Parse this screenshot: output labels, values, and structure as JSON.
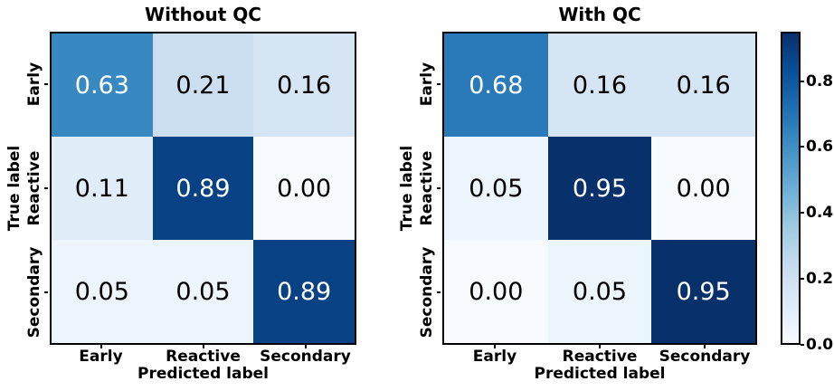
{
  "figure": {
    "background": "#ffffff"
  },
  "chart_data": [
    {
      "type": "heatmap",
      "title": "Without QC",
      "xlabel": "Predicted label",
      "ylabel": "True label",
      "x_tick_labels": [
        "Early",
        "Reactive",
        "Secondary"
      ],
      "y_tick_labels": [
        "Early",
        "Reactive",
        "Secondary"
      ],
      "rows": [
        [
          0.63,
          0.21,
          0.16
        ],
        [
          0.11,
          0.89,
          0.0
        ],
        [
          0.05,
          0.05,
          0.89
        ]
      ]
    },
    {
      "type": "heatmap",
      "title": "With QC",
      "xlabel": "Predicted label",
      "ylabel": "True label",
      "x_tick_labels": [
        "Early",
        "Reactive",
        "Secondary"
      ],
      "y_tick_labels": [
        "Early",
        "Reactive",
        "Secondary"
      ],
      "rows": [
        [
          0.68,
          0.16,
          0.16
        ],
        [
          0.05,
          0.95,
          0.0
        ],
        [
          0.0,
          0.05,
          0.95
        ]
      ]
    }
  ],
  "colorbar": {
    "vmin": 0.0,
    "vmax": 0.95,
    "colormap_name": "Blues",
    "ticks": [
      {
        "value": 0.0,
        "label": "0.0"
      },
      {
        "value": 0.2,
        "label": "0.2"
      },
      {
        "value": 0.4,
        "label": "0.4"
      },
      {
        "value": 0.6,
        "label": "0.6"
      },
      {
        "value": 0.8,
        "label": "0.8"
      }
    ],
    "gradient_stops": [
      {
        "t": 0.0,
        "color": "#f7fbff"
      },
      {
        "t": 0.125,
        "color": "#deebf7"
      },
      {
        "t": 0.25,
        "color": "#c6dbef"
      },
      {
        "t": 0.375,
        "color": "#9ecae1"
      },
      {
        "t": 0.5,
        "color": "#6baed6"
      },
      {
        "t": 0.625,
        "color": "#4292c6"
      },
      {
        "t": 0.75,
        "color": "#2171b5"
      },
      {
        "t": 0.875,
        "color": "#08519c"
      },
      {
        "t": 1.0,
        "color": "#08306b"
      }
    ]
  },
  "style": {
    "cell_text_light": "#ffffff",
    "cell_text_dark": "#000000",
    "spine_color": "#000000",
    "light_text_threshold": 0.5
  }
}
